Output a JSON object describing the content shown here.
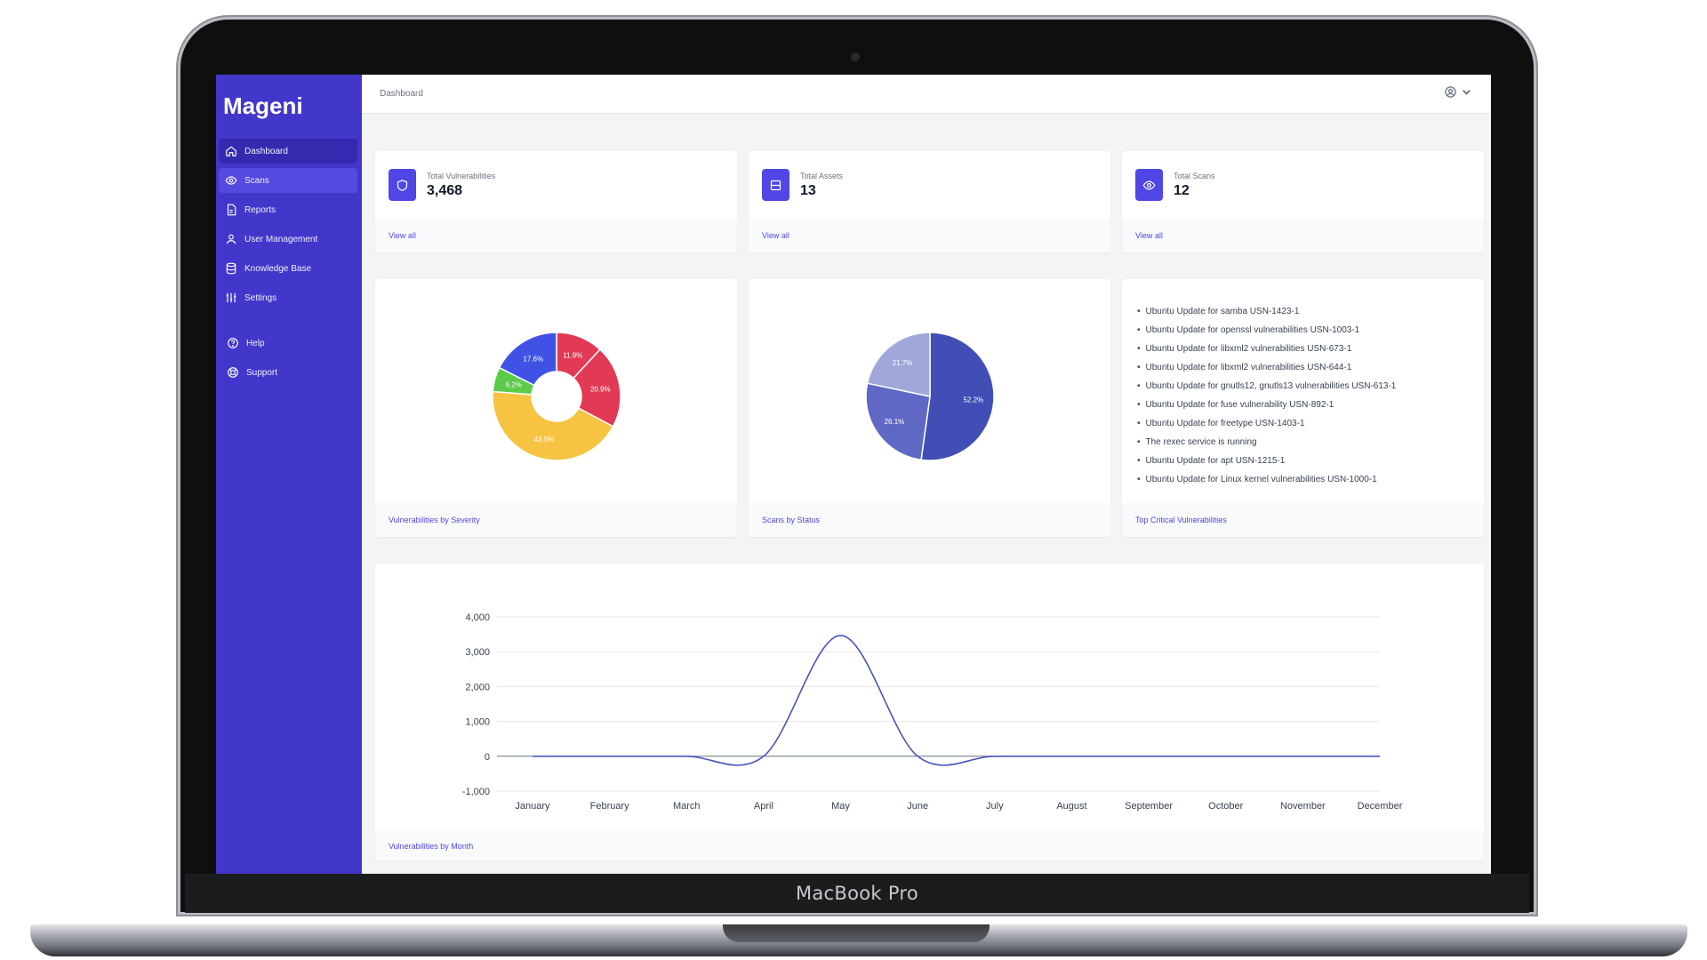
{
  "device": {
    "label": "MacBook Pro"
  },
  "app": {
    "brand": "Mageni"
  },
  "sidebar": {
    "items": [
      {
        "label": "Dashboard",
        "icon": "home-icon"
      },
      {
        "label": "Scans",
        "icon": "eye-icon"
      },
      {
        "label": "Reports",
        "icon": "document-icon"
      },
      {
        "label": "User Management",
        "icon": "users-icon"
      },
      {
        "label": "Knowledge Base",
        "icon": "database-icon"
      },
      {
        "label": "Settings",
        "icon": "sliders-icon"
      }
    ],
    "secondary": [
      {
        "label": "Help",
        "icon": "question-icon"
      },
      {
        "label": "Support",
        "icon": "lifebuoy-icon"
      }
    ]
  },
  "header": {
    "breadcrumb": "Dashboard",
    "user_icon": "user-circle-icon"
  },
  "stats": [
    {
      "label": "Total Vulnerabilities",
      "value": "3,468",
      "link": "View all",
      "icon": "shield-icon"
    },
    {
      "label": "Total Assets",
      "value": "13",
      "link": "View all",
      "icon": "server-icon"
    },
    {
      "label": "Total Scans",
      "value": "12",
      "link": "View all",
      "icon": "eye-icon"
    }
  ],
  "panels": {
    "severity_title": "Vulnerabilities by Severity",
    "status_title": "Scans by Status",
    "critical_title": "Top Critical Vulnerabilities",
    "monthly_title": "Vulnerabilities by Month"
  },
  "critical_vulnerabilities": [
    "Ubuntu Update for samba USN-1423-1",
    "Ubuntu Update for openssl vulnerabilities USN-1003-1",
    "Ubuntu Update for libxml2 vulnerabilities USN-673-1",
    "Ubuntu Update for libxml2 vulnerabilities USN-644-1",
    "Ubuntu Update for gnutls12, gnutls13 vulnerabilities USN-613-1",
    "Ubuntu Update for fuse vulnerability USN-892-1",
    "Ubuntu Update for freetype USN-1403-1",
    "The rexec service is running",
    "Ubuntu Update for apt USN-1215-1",
    "Ubuntu Update for Linux kernel vulnerabilities USN-1000-1"
  ],
  "colors": {
    "sidebar": "#4337cb",
    "accent": "#4f46e5",
    "severity": [
      "#e23a55",
      "#f6c343",
      "#5ccb4b",
      "#4052e6"
    ],
    "status": [
      "#414eb6",
      "#5f68c4",
      "#a0a7db"
    ],
    "line": "#4a54b8"
  },
  "chart_data": [
    {
      "type": "pie",
      "variant": "donut",
      "title": "Vulnerabilities by Severity",
      "slices": [
        {
          "label": "11.9%",
          "value": 11.9,
          "color": "#e23a55"
        },
        {
          "label": "20.9%",
          "value": 20.9,
          "color": "#e23a55"
        },
        {
          "label": "43.5%",
          "value": 43.5,
          "color": "#f6c343"
        },
        {
          "label": "6.2%",
          "value": 6.2,
          "color": "#5ccb4b"
        },
        {
          "label": "17.6%",
          "value": 17.6,
          "color": "#4052e6"
        }
      ]
    },
    {
      "type": "pie",
      "title": "Scans by Status",
      "slices": [
        {
          "label": "52.2%",
          "value": 52.2,
          "color": "#414eb6"
        },
        {
          "label": "26.1%",
          "value": 26.1,
          "color": "#5f68c4"
        },
        {
          "label": "21.7%",
          "value": 21.7,
          "color": "#a0a7db"
        }
      ]
    },
    {
      "type": "line",
      "title": "Vulnerabilities by Month",
      "categories": [
        "January",
        "February",
        "March",
        "April",
        "May",
        "June",
        "July",
        "August",
        "September",
        "October",
        "November",
        "December"
      ],
      "series": [
        {
          "values": [
            0,
            0,
            0,
            0,
            3468,
            0,
            0,
            0,
            0,
            0,
            0,
            0
          ]
        }
      ],
      "yticks": [
        "4,000",
        "3,000",
        "2,000",
        "1,000",
        "0",
        "-1,000"
      ],
      "ylim": [
        -1000,
        4000
      ],
      "grid": true
    }
  ]
}
